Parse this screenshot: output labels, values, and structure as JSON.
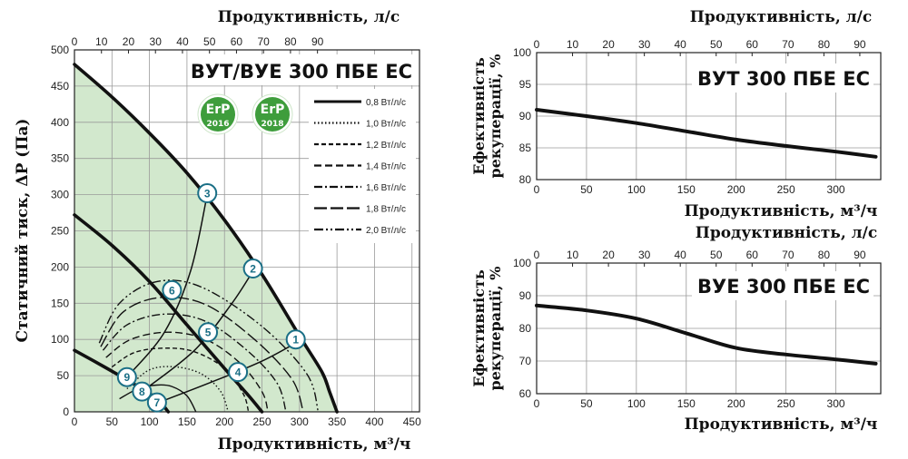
{
  "chart_data": [
    {
      "type": "line",
      "title": "ВУТ/ВУЕ 300 ПБЕ ЕС",
      "xlabel": "Продуктивність, м³/ч",
      "x2label": "Продуктивність, л/с",
      "ylabel": "Статичний тиск, ΔР (Па)",
      "xlim": [
        0,
        460
      ],
      "ylim": [
        0,
        500
      ],
      "x_ticks": [
        0,
        50,
        100,
        150,
        200,
        250,
        300,
        350,
        400,
        450
      ],
      "x_ticks_labels": [
        "0",
        "50",
        "100",
        "150",
        "200",
        "250",
        "300",
        "350",
        "400",
        "450"
      ],
      "y_ticks": [
        0,
        50,
        100,
        150,
        200,
        250,
        300,
        350,
        400,
        450,
        500
      ],
      "y_ticks_labels": [
        "0",
        "50",
        "100",
        "150",
        "200",
        "250",
        "300",
        "350",
        "400",
        "450",
        "500"
      ],
      "x2_ticks_ls": [
        0,
        10,
        20,
        30,
        40,
        50,
        60,
        70,
        80,
        90
      ],
      "x2_ticks_labels": [
        "0",
        "10",
        "20",
        "30",
        "40",
        "50",
        "60",
        "70",
        "80",
        "90"
      ],
      "grid": true,
      "legend_position": "top-right",
      "badges": [
        {
          "top": "ErP",
          "bottom": "2016",
          "color": "#3e9d3c"
        },
        {
          "top": "ErP",
          "bottom": "2018",
          "color": "#3e9d3c"
        }
      ],
      "legend": [
        {
          "label": "0,8 Вт/л/с",
          "dash": "solid"
        },
        {
          "label": "1,0 Вт/л/с",
          "dash": "dotted"
        },
        {
          "label": "1,2 Вт/л/с",
          "dash": "short-dash"
        },
        {
          "label": "1,4 Вт/л/с",
          "dash": "dash"
        },
        {
          "label": "1,6 Вт/л/с",
          "dash": "dash-dot"
        },
        {
          "label": "1,8 Вт/л/с",
          "dash": "long-dash"
        },
        {
          "label": "2,0 Вт/л/с",
          "dash": "dash-dot-dot"
        }
      ],
      "fan_curves": [
        {
          "points": [
            [
              0,
              480
            ],
            [
              50,
              435
            ],
            [
              100,
              385
            ],
            [
              150,
              330
            ],
            [
              200,
              265
            ],
            [
              250,
              190
            ],
            [
              300,
              105
            ],
            [
              330,
              55
            ],
            [
              340,
              28
            ],
            [
              350,
              0
            ]
          ]
        },
        {
          "points": [
            [
              0,
              272
            ],
            [
              50,
              230
            ],
            [
              100,
              180
            ],
            [
              150,
              120
            ],
            [
              200,
              60
            ],
            [
              230,
              25
            ],
            [
              250,
              0
            ]
          ]
        },
        {
          "points": [
            [
              0,
              85
            ],
            [
              40,
              62
            ],
            [
              80,
              38
            ],
            [
              110,
              18
            ],
            [
              125,
              0
            ]
          ]
        }
      ],
      "system_curves": [
        {
          "points": [
            [
              70,
              48
            ],
            [
              120,
              110
            ],
            [
              155,
              195
            ],
            [
              177,
              300
            ]
          ]
        },
        {
          "points": [
            [
              90,
              28
            ],
            [
              160,
              85
            ],
            [
              210,
              150
            ],
            [
              240,
              198
            ]
          ]
        },
        {
          "points": [
            [
              110,
              12
            ],
            [
              180,
              40
            ],
            [
              250,
              70
            ],
            [
              300,
              98
            ]
          ]
        }
      ],
      "efficiency_curves": [
        {
          "dash": "solid",
          "points": [
            [
              60,
              18
            ],
            [
              85,
              32
            ],
            [
              110,
              37
            ],
            [
              130,
              35
            ],
            [
              150,
              22
            ],
            [
              162,
              0
            ]
          ]
        },
        {
          "dash": "dotted",
          "points": [
            [
              70,
              32
            ],
            [
              100,
              58
            ],
            [
              135,
              62
            ],
            [
              170,
              52
            ],
            [
              195,
              28
            ],
            [
              205,
              0
            ]
          ]
        },
        {
          "dash": "short-dash",
          "points": [
            [
              50,
              62
            ],
            [
              80,
              82
            ],
            [
              120,
              88
            ],
            [
              160,
              83
            ],
            [
              200,
              60
            ],
            [
              225,
              25
            ],
            [
              232,
              0
            ]
          ]
        },
        {
          "dash": "dash",
          "points": [
            [
              42,
              75
            ],
            [
              75,
              100
            ],
            [
              125,
              110
            ],
            [
              175,
              100
            ],
            [
              220,
              68
            ],
            [
              250,
              28
            ],
            [
              258,
              0
            ]
          ]
        },
        {
          "dash": "dash-dot",
          "points": [
            [
              38,
              85
            ],
            [
              70,
              120
            ],
            [
              120,
              135
            ],
            [
              175,
              125
            ],
            [
              230,
              85
            ],
            [
              270,
              40
            ],
            [
              282,
              0
            ]
          ]
        },
        {
          "dash": "long-dash",
          "points": [
            [
              35,
              90
            ],
            [
              65,
              138
            ],
            [
              115,
              158
            ],
            [
              175,
              148
            ],
            [
              240,
              100
            ],
            [
              290,
              45
            ],
            [
              305,
              0
            ]
          ]
        },
        {
          "dash": "dash-dot-dot",
          "points": [
            [
              33,
              95
            ],
            [
              60,
              150
            ],
            [
              110,
              180
            ],
            [
              170,
              172
            ],
            [
              250,
              118
            ],
            [
              310,
              52
            ],
            [
              325,
              0
            ]
          ]
        }
      ],
      "operating_points": [
        {
          "label": "1",
          "x": 295,
          "y": 100
        },
        {
          "label": "2",
          "x": 238,
          "y": 198
        },
        {
          "label": "3",
          "x": 177,
          "y": 302
        },
        {
          "label": "4",
          "x": 218,
          "y": 55
        },
        {
          "label": "5",
          "x": 178,
          "y": 110
        },
        {
          "label": "6",
          "x": 130,
          "y": 168
        },
        {
          "label": "7",
          "x": 110,
          "y": 13
        },
        {
          "label": "8",
          "x": 90,
          "y": 28
        },
        {
          "label": "9",
          "x": 70,
          "y": 48
        }
      ]
    },
    {
      "type": "line",
      "title": "ВУТ 300 ПБЕ ЕС",
      "xlabel": "Продуктивність, м³/ч",
      "x2label": "Продуктивність, л/с",
      "ylabel": "Ефективність рекуперації, %",
      "xlim": [
        0,
        345
      ],
      "ylim": [
        80,
        100
      ],
      "x_ticks": [
        0,
        50,
        100,
        150,
        200,
        250,
        300
      ],
      "x_ticks_labels": [
        "0",
        "50",
        "100",
        "150",
        "200",
        "250",
        "300"
      ],
      "y_ticks": [
        80,
        85,
        90,
        95,
        100
      ],
      "y_ticks_labels": [
        "80",
        "85",
        "90",
        "95",
        "100"
      ],
      "x2_ticks_ls": [
        0,
        10,
        20,
        30,
        40,
        50,
        60,
        70,
        80,
        90
      ],
      "x2_ticks_labels": [
        "0",
        "10",
        "20",
        "30",
        "40",
        "50",
        "60",
        "70",
        "80",
        "90"
      ],
      "grid": true,
      "series": [
        {
          "points": [
            [
              0,
              91
            ],
            [
              50,
              90
            ],
            [
              100,
              88.9
            ],
            [
              150,
              87.6
            ],
            [
              200,
              86.3
            ],
            [
              250,
              85.3
            ],
            [
              300,
              84.4
            ],
            [
              340,
              83.6
            ]
          ]
        }
      ]
    },
    {
      "type": "line",
      "title": "ВУЕ 300 ПБЕ ЕС",
      "xlabel": "Продуктивність, м³/ч",
      "x2label": "Продуктивність, л/с",
      "ylabel": "Ефективність рекуперації, %",
      "xlim": [
        0,
        345
      ],
      "ylim": [
        60,
        100
      ],
      "x_ticks": [
        0,
        50,
        100,
        150,
        200,
        250,
        300
      ],
      "x_ticks_labels": [
        "0",
        "50",
        "100",
        "150",
        "200",
        "250",
        "300"
      ],
      "y_ticks": [
        60,
        70,
        80,
        90,
        100
      ],
      "y_ticks_labels": [
        "60",
        "70",
        "80",
        "90",
        "100"
      ],
      "x2_ticks_ls": [
        0,
        10,
        20,
        30,
        40,
        50,
        60,
        70,
        80,
        90
      ],
      "x2_ticks_labels": [
        "0",
        "10",
        "20",
        "30",
        "40",
        "50",
        "60",
        "70",
        "80",
        "90"
      ],
      "grid": true,
      "series": [
        {
          "points": [
            [
              0,
              87
            ],
            [
              50,
              85.5
            ],
            [
              100,
              83
            ],
            [
              150,
              78.5
            ],
            [
              200,
              74
            ],
            [
              250,
              72
            ],
            [
              300,
              70.5
            ],
            [
              340,
              69.2
            ]
          ]
        }
      ]
    }
  ]
}
